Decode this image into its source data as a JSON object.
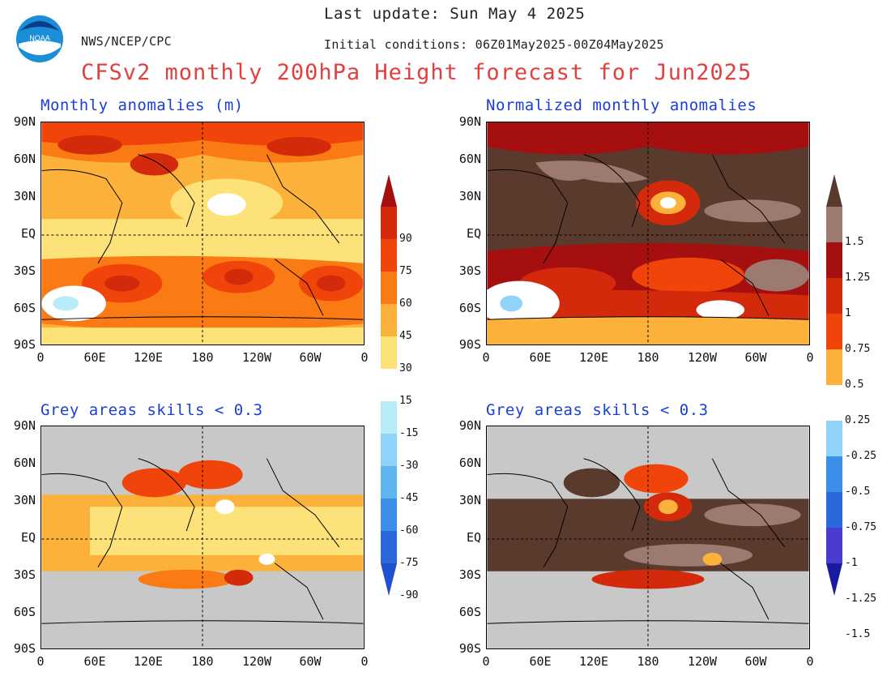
{
  "header": {
    "last_update": "Last update: Sun May 4 2025",
    "agency": "NWS/NCEP/CPC",
    "initial_conditions": "Initial conditions: 06Z01May2025-00Z04May2025",
    "title": "CFSv2 monthly 200hPa Height forecast for Jun2025",
    "logo_text": "NOAA"
  },
  "panels": {
    "top_left_title": "Monthly anomalies (m)",
    "top_right_title": "Normalized monthly anomalies",
    "bottom_left_title": "Grey areas skills < 0.3",
    "bottom_right_title": "Grey areas skills < 0.3"
  },
  "axes": {
    "lat_labels": [
      "90N",
      "60N",
      "30N",
      "EQ",
      "30S",
      "60S",
      "90S"
    ],
    "lon_labels": [
      "0",
      "60E",
      "120E",
      "180",
      "120W",
      "60W",
      "0"
    ]
  },
  "colorbar_left": {
    "labels": [
      "90",
      "75",
      "60",
      "45",
      "30",
      "15",
      "-15",
      "-30",
      "-45",
      "-60",
      "-75",
      "-90"
    ],
    "colors": [
      "#a50f0f",
      "#d42a0c",
      "#f0440a",
      "#fa7a14",
      "#fcb23a",
      "#fde27a",
      "#ffffff",
      "#b8ecf8",
      "#8fd4f8",
      "#62b4f0",
      "#3d8ee8",
      "#2a68dc",
      "#2050d0"
    ]
  },
  "colorbar_right": {
    "labels": [
      "1.5",
      "1.25",
      "1",
      "0.75",
      "0.5",
      "0.25",
      "-0.25",
      "-0.5",
      "-0.75",
      "-1",
      "-1.25",
      "-1.5"
    ],
    "colors": [
      "#5a3a2c",
      "#9c7a70",
      "#a50f0f",
      "#d42a0c",
      "#f0440a",
      "#fcb23a",
      "#ffffff",
      "#8fd4f8",
      "#3d8ee8",
      "#2a68dc",
      "#4a3ad0",
      "#1a1aa0"
    ]
  },
  "colors": {
    "title_red": "#e04040",
    "panel_title_blue": "#1a3fd6",
    "grey_mask": "#c8c8c8",
    "brown": "#5a3a2c"
  }
}
